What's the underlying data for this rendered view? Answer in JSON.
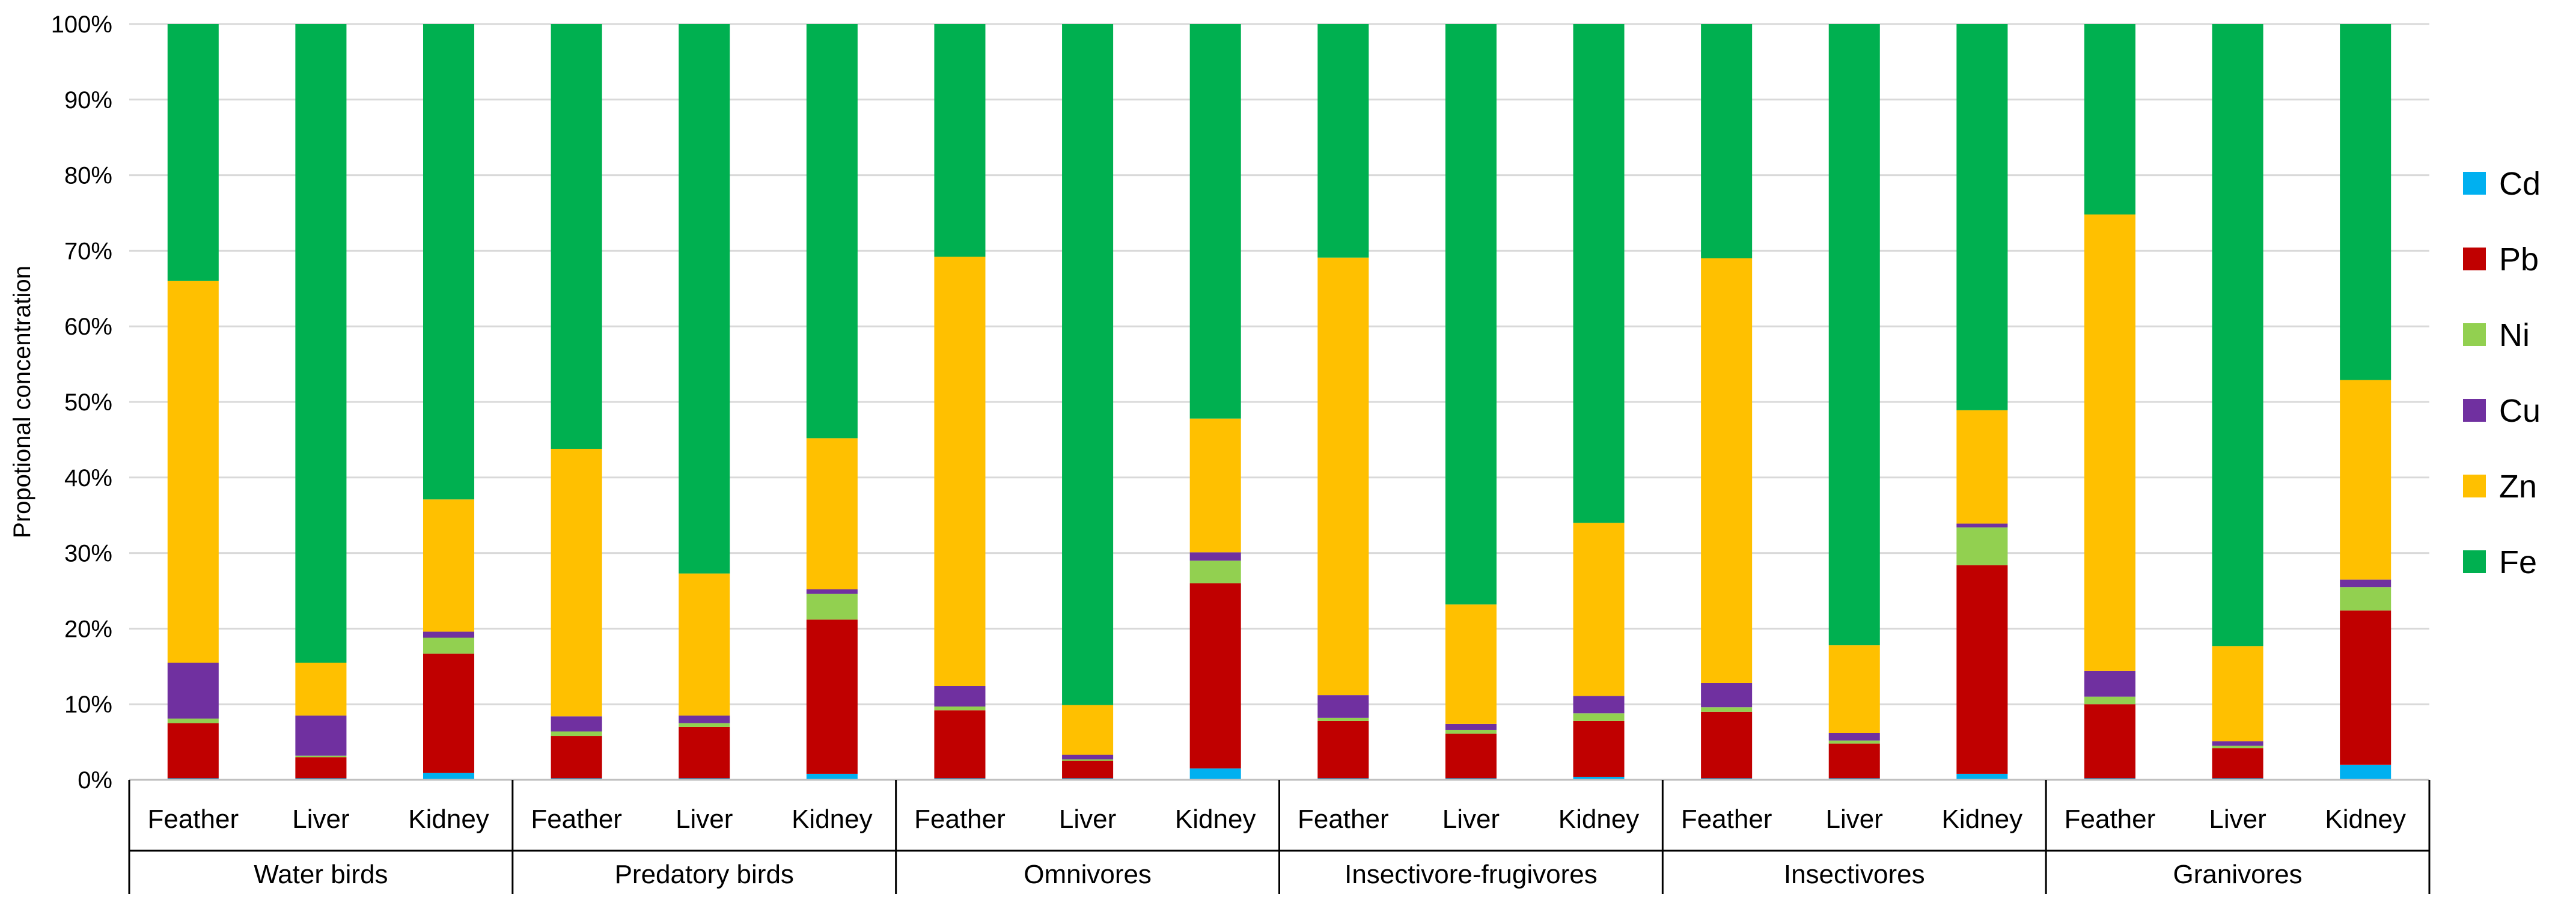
{
  "chart_data": {
    "type": "bar",
    "stacked": true,
    "normalized": true,
    "title": "",
    "xlabel": "",
    "ylabel": "Propotional concentration",
    "ylim": [
      0,
      100
    ],
    "yticks": [
      "0%",
      "10%",
      "20%",
      "30%",
      "40%",
      "50%",
      "60%",
      "70%",
      "80%",
      "90%",
      "100%"
    ],
    "grid": true,
    "legend_position": "right",
    "groups": [
      {
        "name": "Water birds",
        "categories": [
          "Feather",
          "Liver",
          "Kidney"
        ]
      },
      {
        "name": "Predatory birds",
        "categories": [
          "Feather",
          "Liver",
          "Kidney"
        ]
      },
      {
        "name": "Omnivores",
        "categories": [
          "Feather",
          "Liver",
          "Kidney"
        ]
      },
      {
        "name": "Insectivore-frugivores",
        "categories": [
          "Feather",
          "Liver",
          "Kidney"
        ]
      },
      {
        "name": "Insectivores",
        "categories": [
          "Feather",
          "Liver",
          "Kidney"
        ]
      },
      {
        "name": "Granivores",
        "categories": [
          "Feather",
          "Liver",
          "Kidney"
        ]
      }
    ],
    "series": [
      {
        "name": "Cd",
        "color": "#00b0f0",
        "values": [
          0.2,
          0.2,
          0.9,
          0.2,
          0.2,
          0.8,
          0.2,
          0.2,
          1.5,
          0.2,
          0.2,
          0.4,
          0.2,
          0.2,
          0.8,
          0.2,
          0.2,
          2.0
        ]
      },
      {
        "name": "Pb",
        "color": "#c00000",
        "values": [
          7.3,
          2.8,
          15.8,
          5.6,
          6.8,
          20.4,
          9.0,
          2.3,
          24.5,
          7.6,
          5.9,
          7.4,
          8.8,
          4.6,
          27.6,
          9.8,
          4.0,
          20.4
        ]
      },
      {
        "name": "Ni",
        "color": "#92d050",
        "values": [
          0.6,
          0.2,
          2.1,
          0.6,
          0.5,
          3.4,
          0.5,
          0.2,
          3.0,
          0.4,
          0.5,
          1.0,
          0.6,
          0.4,
          5.0,
          1.0,
          0.3,
          3.1
        ]
      },
      {
        "name": "Cu",
        "color": "#7030a0",
        "values": [
          7.4,
          5.3,
          0.8,
          2.0,
          1.0,
          0.6,
          2.7,
          0.6,
          1.1,
          3.0,
          0.8,
          2.3,
          3.2,
          1.0,
          0.5,
          3.4,
          0.6,
          1.0
        ]
      },
      {
        "name": "Zn",
        "color": "#ffc000",
        "values": [
          50.5,
          7.0,
          17.5,
          35.4,
          18.8,
          20.0,
          56.8,
          6.6,
          17.7,
          57.9,
          15.8,
          22.9,
          56.2,
          11.6,
          15.0,
          60.4,
          12.6,
          26.4
        ]
      },
      {
        "name": "Fe",
        "color": "#00b050",
        "values": [
          34.0,
          84.5,
          62.9,
          56.2,
          72.7,
          54.8,
          30.8,
          90.1,
          52.2,
          30.9,
          76.8,
          66.0,
          31.0,
          82.2,
          51.1,
          25.2,
          82.3,
          47.1
        ]
      }
    ]
  }
}
